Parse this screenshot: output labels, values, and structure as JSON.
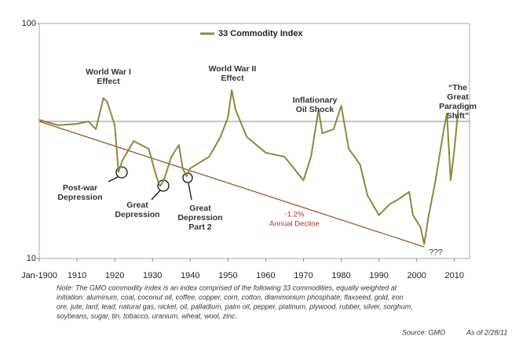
{
  "chart_data": {
    "type": "line",
    "legend": "33 Commodity Index",
    "log_y": true,
    "series": [
      {
        "name": "33 Commodity Index",
        "color": "#8a8a3c",
        "x": [
          1900,
          1905,
          1910,
          1913,
          1915,
          1917,
          1918,
          1920,
          1921,
          1922,
          1925,
          1929,
          1931,
          1932,
          1933,
          1935,
          1937,
          1938,
          1939,
          1940,
          1945,
          1948,
          1950,
          1951,
          1952,
          1955,
          1960,
          1965,
          1970,
          1972,
          1974,
          1975,
          1978,
          1980,
          1982,
          1985,
          1987,
          1990,
          1993,
          1995,
          1998,
          1999,
          2001,
          2002,
          2003,
          2005,
          2007,
          2008,
          2009,
          2010,
          2011
        ],
        "values": [
          38.9,
          36.9,
          37.4,
          38.3,
          35.5,
          48.2,
          46.4,
          36.9,
          23.3,
          26.1,
          31.6,
          29.3,
          22.4,
          20.3,
          21.5,
          27.1,
          30.4,
          24.2,
          22.4,
          24.2,
          27.1,
          32.9,
          39.8,
          52.1,
          43.0,
          32.9,
          28.2,
          27.1,
          21.5,
          27.1,
          43.0,
          34.1,
          35.5,
          44.7,
          29.3,
          25.1,
          18.5,
          15.3,
          17.1,
          17.8,
          19.2,
          15.3,
          13.6,
          11.5,
          14.7,
          21.5,
          34.1,
          41.4,
          21.5,
          29.3,
          43.0
        ]
      }
    ],
    "reference_line": {
      "value": 38.3,
      "color": "#888888"
    },
    "trend_line": {
      "x": [
        1900,
        2002
      ],
      "values": [
        38.3,
        11.2
      ],
      "color": "#a0522d"
    },
    "xlim": [
      1900,
      2014
    ],
    "xticks": [
      {
        "value": 1900,
        "label": "Jan-1900"
      },
      1910,
      1920,
      1930,
      1940,
      1950,
      1960,
      1970,
      1980,
      1990,
      2000,
      2010
    ],
    "ylim": [
      10,
      100
    ],
    "yticks": [
      10,
      100
    ],
    "annotations": [
      {
        "lines": [
          "World War I",
          "Effect"
        ]
      },
      {
        "lines": [
          "World War II",
          "Effect"
        ]
      },
      {
        "lines": [
          "Inflationary",
          "Oil Shock"
        ]
      },
      {
        "lines": [
          "“The",
          "Great",
          "Paradigm",
          "Shift”"
        ]
      },
      {
        "lines": [
          "Post-war",
          "Depression"
        ]
      },
      {
        "lines": [
          "Great",
          "Depression"
        ]
      },
      {
        "lines": [
          "Great",
          "Depression",
          "Part 2"
        ]
      },
      {
        "lines": [
          "-1.2%",
          "Annual Decline"
        ]
      },
      {
        "lines": [
          "???"
        ]
      }
    ],
    "note": [
      "Note: The GMO commodity index is an index comprised of the following 33 commodities, equally weighted at",
      "initiation:  aluminum, coal, coconut oil, coffee, copper, corn, cotton, diammonium phosphate, flaxseed, gold, iron",
      "ore, jute, lard, lead, natural gas, nickel, oil, palladium, palm oil, pepper, platinum, plywood, rubber, silver, sorghum,",
      "soybeans, sugar, tin, tobacco, uranium, wheat, wool, zinc."
    ],
    "source": "Source:  GMO",
    "as_of": "As of 2/28/11"
  }
}
